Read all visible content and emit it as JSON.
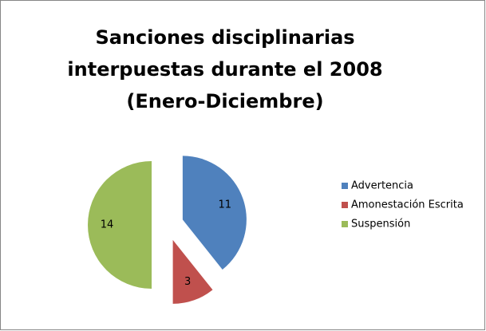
{
  "chart_data": {
    "type": "pie",
    "title": [
      "Sanciones disciplinarias",
      "interpuestas durante el 2008",
      "(Enero-Diciembre)"
    ],
    "categories": [
      "Advertencia",
      "Amonestación Escrita",
      "Suspensión"
    ],
    "values": [
      11,
      3,
      14
    ],
    "colors": [
      "#4f81bd",
      "#c0504d",
      "#9bbb59"
    ],
    "legend": "right"
  }
}
